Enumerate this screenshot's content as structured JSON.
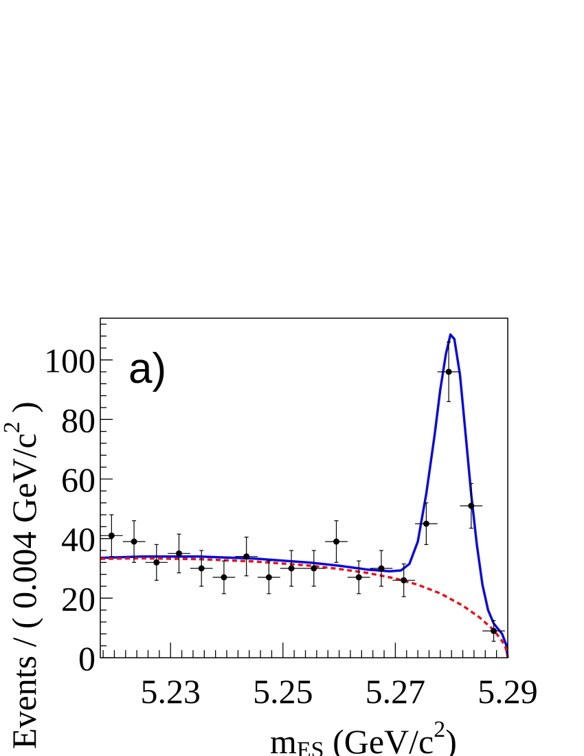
{
  "chart_data": {
    "type": "scatter",
    "panel_label": "a)",
    "xlabel_main": "m",
    "xlabel_sub": "ES",
    "xlabel_tail": " (GeV/c",
    "xlabel_sup": "2",
    "xlabel_close": ")",
    "ylabel": "Events / ( 0.004 GeV/c",
    "ylabel_sup": "2",
    "ylabel_close": " )",
    "xlim": [
      5.2175,
      5.29
    ],
    "ylim": [
      0,
      114
    ],
    "x_ticks": [
      "5.23",
      "5.25",
      "5.27",
      "5.29"
    ],
    "x_tick_values": [
      5.23,
      5.25,
      5.27,
      5.29
    ],
    "y_ticks": [
      "0",
      "20",
      "40",
      "60",
      "80",
      "100"
    ],
    "y_tick_values": [
      0,
      20,
      40,
      60,
      80,
      100
    ],
    "bin_width": 0.004,
    "points": [
      {
        "x": 5.2195,
        "y": 41,
        "err": 7
      },
      {
        "x": 5.2235,
        "y": 39,
        "err": 7
      },
      {
        "x": 5.2275,
        "y": 32,
        "err": 6
      },
      {
        "x": 5.2315,
        "y": 35,
        "err": 6.5
      },
      {
        "x": 5.2355,
        "y": 30,
        "err": 6
      },
      {
        "x": 5.2395,
        "y": 27,
        "err": 5.5
      },
      {
        "x": 5.2435,
        "y": 34,
        "err": 6.5
      },
      {
        "x": 5.2475,
        "y": 27,
        "err": 5.5
      },
      {
        "x": 5.2515,
        "y": 30,
        "err": 6
      },
      {
        "x": 5.2555,
        "y": 30,
        "err": 6
      },
      {
        "x": 5.2595,
        "y": 39,
        "err": 7
      },
      {
        "x": 5.2635,
        "y": 27,
        "err": 5.5
      },
      {
        "x": 5.2675,
        "y": 30,
        "err": 6
      },
      {
        "x": 5.2715,
        "y": 26,
        "err": 5.5
      },
      {
        "x": 5.2755,
        "y": 45,
        "err": 7
      },
      {
        "x": 5.2795,
        "y": 96,
        "err": 10
      },
      {
        "x": 5.2835,
        "y": 51,
        "err": 7.5
      },
      {
        "x": 5.2875,
        "y": 9,
        "err": 3.5
      }
    ],
    "background_curve": {
      "style": "dashed",
      "color": "#e8141c",
      "x": [
        5.2175,
        5.225,
        5.235,
        5.245,
        5.255,
        5.26,
        5.265,
        5.27,
        5.274,
        5.278,
        5.282,
        5.285,
        5.2875,
        5.289,
        5.2897,
        5.29
      ],
      "y": [
        33.2,
        33.4,
        33.1,
        32.3,
        30.9,
        29.8,
        28.5,
        26.6,
        24.5,
        21.6,
        17.5,
        13.5,
        9.3,
        5.6,
        3.0,
        0
      ]
    },
    "total_curve": {
      "style": "solid",
      "color": "#0a0adc",
      "x": [
        5.2175,
        5.225,
        5.235,
        5.245,
        5.255,
        5.26,
        5.265,
        5.269,
        5.271,
        5.2725,
        5.274,
        5.2755,
        5.277,
        5.278,
        5.279,
        5.2798,
        5.2805,
        5.2815,
        5.2825,
        5.2835,
        5.2845,
        5.2855,
        5.2865,
        5.2875,
        5.289,
        5.2897,
        5.29
      ],
      "y": [
        33.5,
        34.0,
        34.0,
        33.3,
        31.9,
        30.9,
        29.6,
        29.0,
        29.3,
        31.5,
        39.0,
        55.0,
        75.0,
        90.0,
        102.0,
        108.5,
        107.0,
        95.0,
        75.0,
        55.0,
        38.0,
        24.5,
        16.0,
        11.5,
        8.0,
        4.5,
        0
      ]
    }
  }
}
